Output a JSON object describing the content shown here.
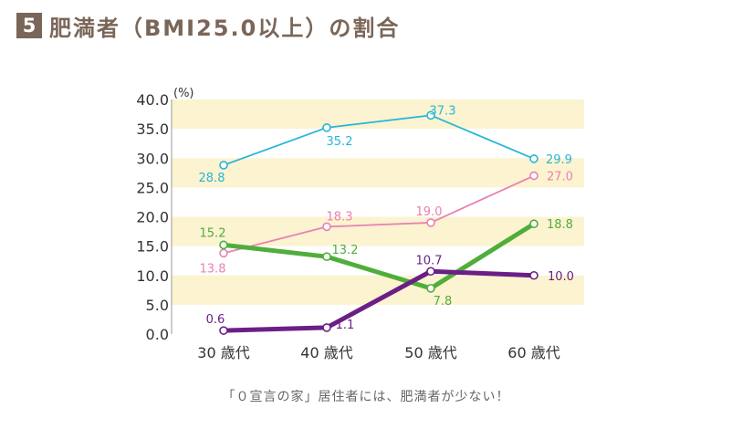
{
  "header": {
    "number": "5",
    "title": "肥満者（BMI25.0以上）の割合"
  },
  "chart_data": {
    "type": "line",
    "categories": [
      "30 歳代",
      "40 歳代",
      "50 歳代",
      "60 歳代"
    ],
    "y_unit": "(%)",
    "ylim": [
      0,
      40
    ],
    "yticks": [
      "0.0",
      "5.0",
      "10.0",
      "15.0",
      "20.0",
      "25.0",
      "30.0",
      "35.0",
      "40.0"
    ],
    "grid": "alternating horizontal bands",
    "series": [
      {
        "values": [
          28.8,
          35.2,
          37.3,
          29.9
        ],
        "labels": [
          "28.8",
          "35.2",
          "37.3",
          "29.9"
        ],
        "color": "#28b6d8"
      },
      {
        "values": [
          13.8,
          18.3,
          19.0,
          27.0
        ],
        "labels": [
          "13.8",
          "18.3",
          "19.0",
          "27.0"
        ],
        "color": "#e882b4"
      },
      {
        "values": [
          15.2,
          13.2,
          7.8,
          18.8
        ],
        "labels": [
          "15.2",
          "13.2",
          "7.8",
          "18.8"
        ],
        "color": "#4fae3a"
      },
      {
        "values": [
          0.6,
          1.1,
          10.7,
          10.0
        ],
        "labels": [
          "0.6",
          "1.1",
          "10.7",
          "10.0"
        ],
        "color": "#6b1f86"
      }
    ]
  },
  "caption": "「０宣言の家」居住者には、肥満者が少ない！",
  "colors": {
    "header": "#7a6658",
    "band": "#fcf3d0",
    "axis_text": "#333333"
  }
}
